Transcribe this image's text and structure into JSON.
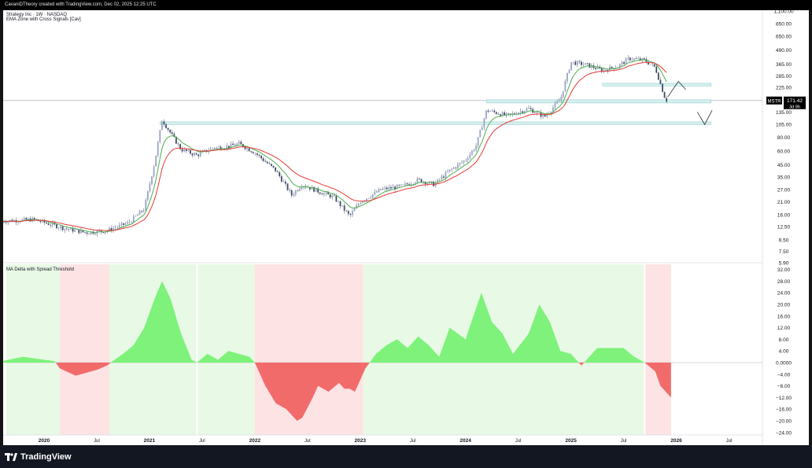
{
  "header": {
    "attribution": "CavaniDTheory created with TradingView.com, Dec 02, 2025 12:25 UTC"
  },
  "price_pane": {
    "symbol_line": "Strategy Inc · 1W · NASDAQ",
    "indicator_line": "EMA Zone with Cross Signals [Cav]",
    "ticker_badge": "MSTR",
    "last_price": "171.42",
    "countdown": "3d 9h",
    "y_ticks": [
      "1,100.00",
      "850.00",
      "650.00",
      "490.00",
      "365.00",
      "285.00",
      "225.00",
      "135.00",
      "105.00",
      "80.00",
      "60.00",
      "45.00",
      "35.00",
      "27.00",
      "21.00",
      "16.00",
      "12.50",
      "9.50",
      "7.50",
      "5.90"
    ]
  },
  "delta_pane": {
    "title": "MA Delta with Spread Threshold",
    "y_ticks": [
      "32.00",
      "28.00",
      "24.00",
      "20.00",
      "16.00",
      "12.00",
      "8.00",
      "4.00",
      "0.0000",
      "−4.00",
      "−8.00",
      "−12.00",
      "−16.00",
      "−20.00",
      "−24.00"
    ]
  },
  "x_axis": {
    "labels": [
      {
        "text": "2020",
        "bold": true
      },
      {
        "text": "Jul",
        "bold": false
      },
      {
        "text": "2021",
        "bold": true
      },
      {
        "text": "Jul",
        "bold": false
      },
      {
        "text": "2022",
        "bold": true
      },
      {
        "text": "Jul",
        "bold": false
      },
      {
        "text": "2023",
        "bold": true
      },
      {
        "text": "Jul",
        "bold": false
      },
      {
        "text": "2024",
        "bold": true
      },
      {
        "text": "Jul",
        "bold": false
      },
      {
        "text": "2025",
        "bold": true
      },
      {
        "text": "Jul",
        "bold": false
      },
      {
        "text": "2026",
        "bold": true
      },
      {
        "text": "Jul",
        "bold": false
      }
    ]
  },
  "footer": {
    "brand": "TradingView"
  },
  "colors": {
    "ema_fast": "#4caf50",
    "ema_slow": "#e53935",
    "bull_zone": "#e8f9e6",
    "bear_zone": "#fde3e3",
    "delta_pos": "#7ef27a",
    "delta_neg": "#f26b6b",
    "zone_box": "#d6f0ef",
    "zone_box_border": "#7fc9c4"
  },
  "chart_data": [
    {
      "type": "line",
      "title": "Strategy Inc · 1W · NASDAQ",
      "scale": "log",
      "ylim": [
        5.9,
        1100
      ],
      "series": [
        {
          "x": [
            2019.6,
            2019.9,
            2020.2,
            2020.4,
            2020.6,
            2020.8,
            2020.95,
            2021.05,
            2021.12,
            2021.3,
            2021.45,
            2021.6,
            2021.75,
            2021.85,
            2022.0,
            2022.2,
            2022.35,
            2022.45,
            2022.6,
            2022.75,
            2022.9,
            2023.0,
            2023.2,
            2023.4,
            2023.55,
            2023.7,
            2023.85,
            2024.0,
            2024.1,
            2024.2,
            2024.4,
            2024.6,
            2024.75,
            2024.9,
            2025.0,
            2025.15,
            2025.3,
            2025.45,
            2025.55,
            2025.7,
            2025.8,
            2025.9
          ],
          "values": [
            14,
            14.5,
            12,
            11,
            11.5,
            13.5,
            18,
            48,
            115,
            62,
            55,
            64,
            66,
            70,
            58,
            40,
            24,
            30,
            26,
            23,
            15.5,
            21,
            27,
            29,
            33,
            30,
            40,
            50,
            67,
            140,
            125,
            145,
            122,
            175,
            380,
            360,
            320,
            350,
            410,
            395,
            340,
            172
          ]
        }
      ]
    },
    {
      "type": "area",
      "title": "MA Delta with Spread Threshold",
      "ylim": [
        -24,
        32
      ],
      "series": [
        {
          "x": [
            2019.6,
            2019.8,
            2020.0,
            2020.1,
            2020.15,
            2020.3,
            2020.4,
            2020.5,
            2020.6,
            2020.65,
            2020.75,
            2020.85,
            2020.95,
            2021.05,
            2021.12,
            2021.2,
            2021.3,
            2021.4,
            2021.45,
            2021.55,
            2021.65,
            2021.75,
            2021.85,
            2021.95,
            2022.0,
            2022.1,
            2022.2,
            2022.3,
            2022.4,
            2022.45,
            2022.55,
            2022.6,
            2022.7,
            2022.8,
            2022.85,
            2022.9,
            2022.95,
            2023.05,
            2023.15,
            2023.25,
            2023.35,
            2023.45,
            2023.55,
            2023.65,
            2023.75,
            2023.85,
            2024.0,
            2024.15,
            2024.25,
            2024.35,
            2024.45,
            2024.6,
            2024.7,
            2024.8,
            2024.9,
            2025.0,
            2025.1,
            2025.25,
            2025.35,
            2025.5,
            2025.6,
            2025.7,
            2025.8,
            2025.85,
            2025.95
          ],
          "values": [
            0.5,
            2,
            1,
            0.5,
            -2,
            -4.5,
            -3.5,
            -2.5,
            -1,
            0.5,
            3,
            6,
            12,
            22,
            28,
            22,
            10,
            1,
            0,
            3,
            1,
            4,
            3,
            2,
            0,
            -8,
            -14,
            -16,
            -20,
            -19,
            -12,
            -8,
            -10,
            -7,
            -9,
            -9,
            -10,
            -2,
            3,
            6,
            8,
            5,
            9,
            6,
            2,
            12,
            8,
            24,
            14,
            10,
            3,
            10,
            20,
            14,
            4,
            3,
            -1,
            5,
            5,
            5,
            2,
            0,
            -3,
            -8,
            -12
          ]
        }
      ]
    }
  ]
}
